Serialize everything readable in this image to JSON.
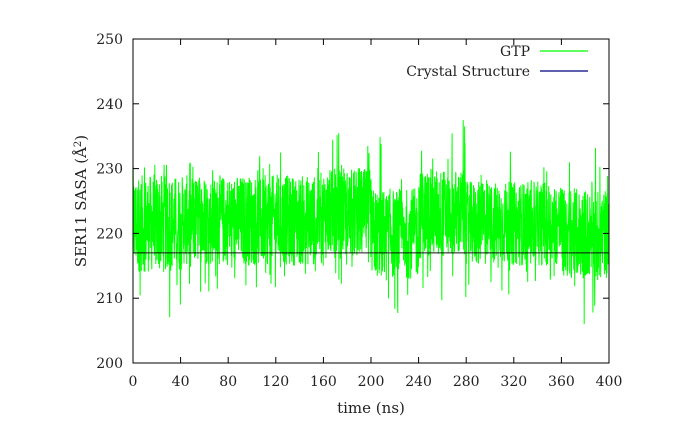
{
  "chart_data": {
    "type": "line",
    "xlabel": "time (ns)",
    "ylabel": "SER11 SASA (Å²)",
    "ylabel_main": "SER11 SASA (Å",
    "ylabel_sup": "2",
    "ylabel_end": ")",
    "xlim": [
      0,
      400
    ],
    "ylim": [
      200,
      250
    ],
    "xticks": [
      0,
      40,
      80,
      120,
      160,
      200,
      240,
      280,
      320,
      360,
      400
    ],
    "yticks": [
      200,
      210,
      220,
      230,
      240,
      250
    ],
    "grid": false,
    "legend_position": "top-right",
    "series": [
      {
        "name": "GTP",
        "color": "#00ff00",
        "style": "noisy time series",
        "mean": 222,
        "segments": [
          {
            "x_start": 0,
            "x_end": 40,
            "band": [
              214,
              229
            ],
            "spike_min": 206,
            "spike_max": 231
          },
          {
            "x_start": 40,
            "x_end": 80,
            "band": [
              215,
              229
            ],
            "spike_min": 211,
            "spike_max": 231
          },
          {
            "x_start": 80,
            "x_end": 120,
            "band": [
              215,
              229
            ],
            "spike_min": 211,
            "spike_max": 232
          },
          {
            "x_start": 120,
            "x_end": 160,
            "band": [
              215,
              229
            ],
            "spike_min": 212,
            "spike_max": 233
          },
          {
            "x_start": 160,
            "x_end": 200,
            "band": [
              216,
              230
            ],
            "spike_min": 212,
            "spike_max": 237
          },
          {
            "x_start": 200,
            "x_end": 240,
            "band": [
              213,
              227
            ],
            "spike_min": 207,
            "spike_max": 236
          },
          {
            "x_start": 240,
            "x_end": 280,
            "band": [
              216,
              230
            ],
            "spike_min": 208,
            "spike_max": 238
          },
          {
            "x_start": 280,
            "x_end": 320,
            "band": [
              215,
              228
            ],
            "spike_min": 209,
            "spike_max": 233
          },
          {
            "x_start": 320,
            "x_end": 360,
            "band": [
              215,
              228
            ],
            "spike_min": 212,
            "spike_max": 231
          },
          {
            "x_start": 360,
            "x_end": 400,
            "band": [
              213,
              227
            ],
            "spike_min": 206,
            "spike_max": 234
          }
        ]
      },
      {
        "name": "Crystal Structure",
        "color": "#000080",
        "x": [
          0,
          400
        ],
        "y": [
          217,
          217
        ]
      }
    ]
  }
}
